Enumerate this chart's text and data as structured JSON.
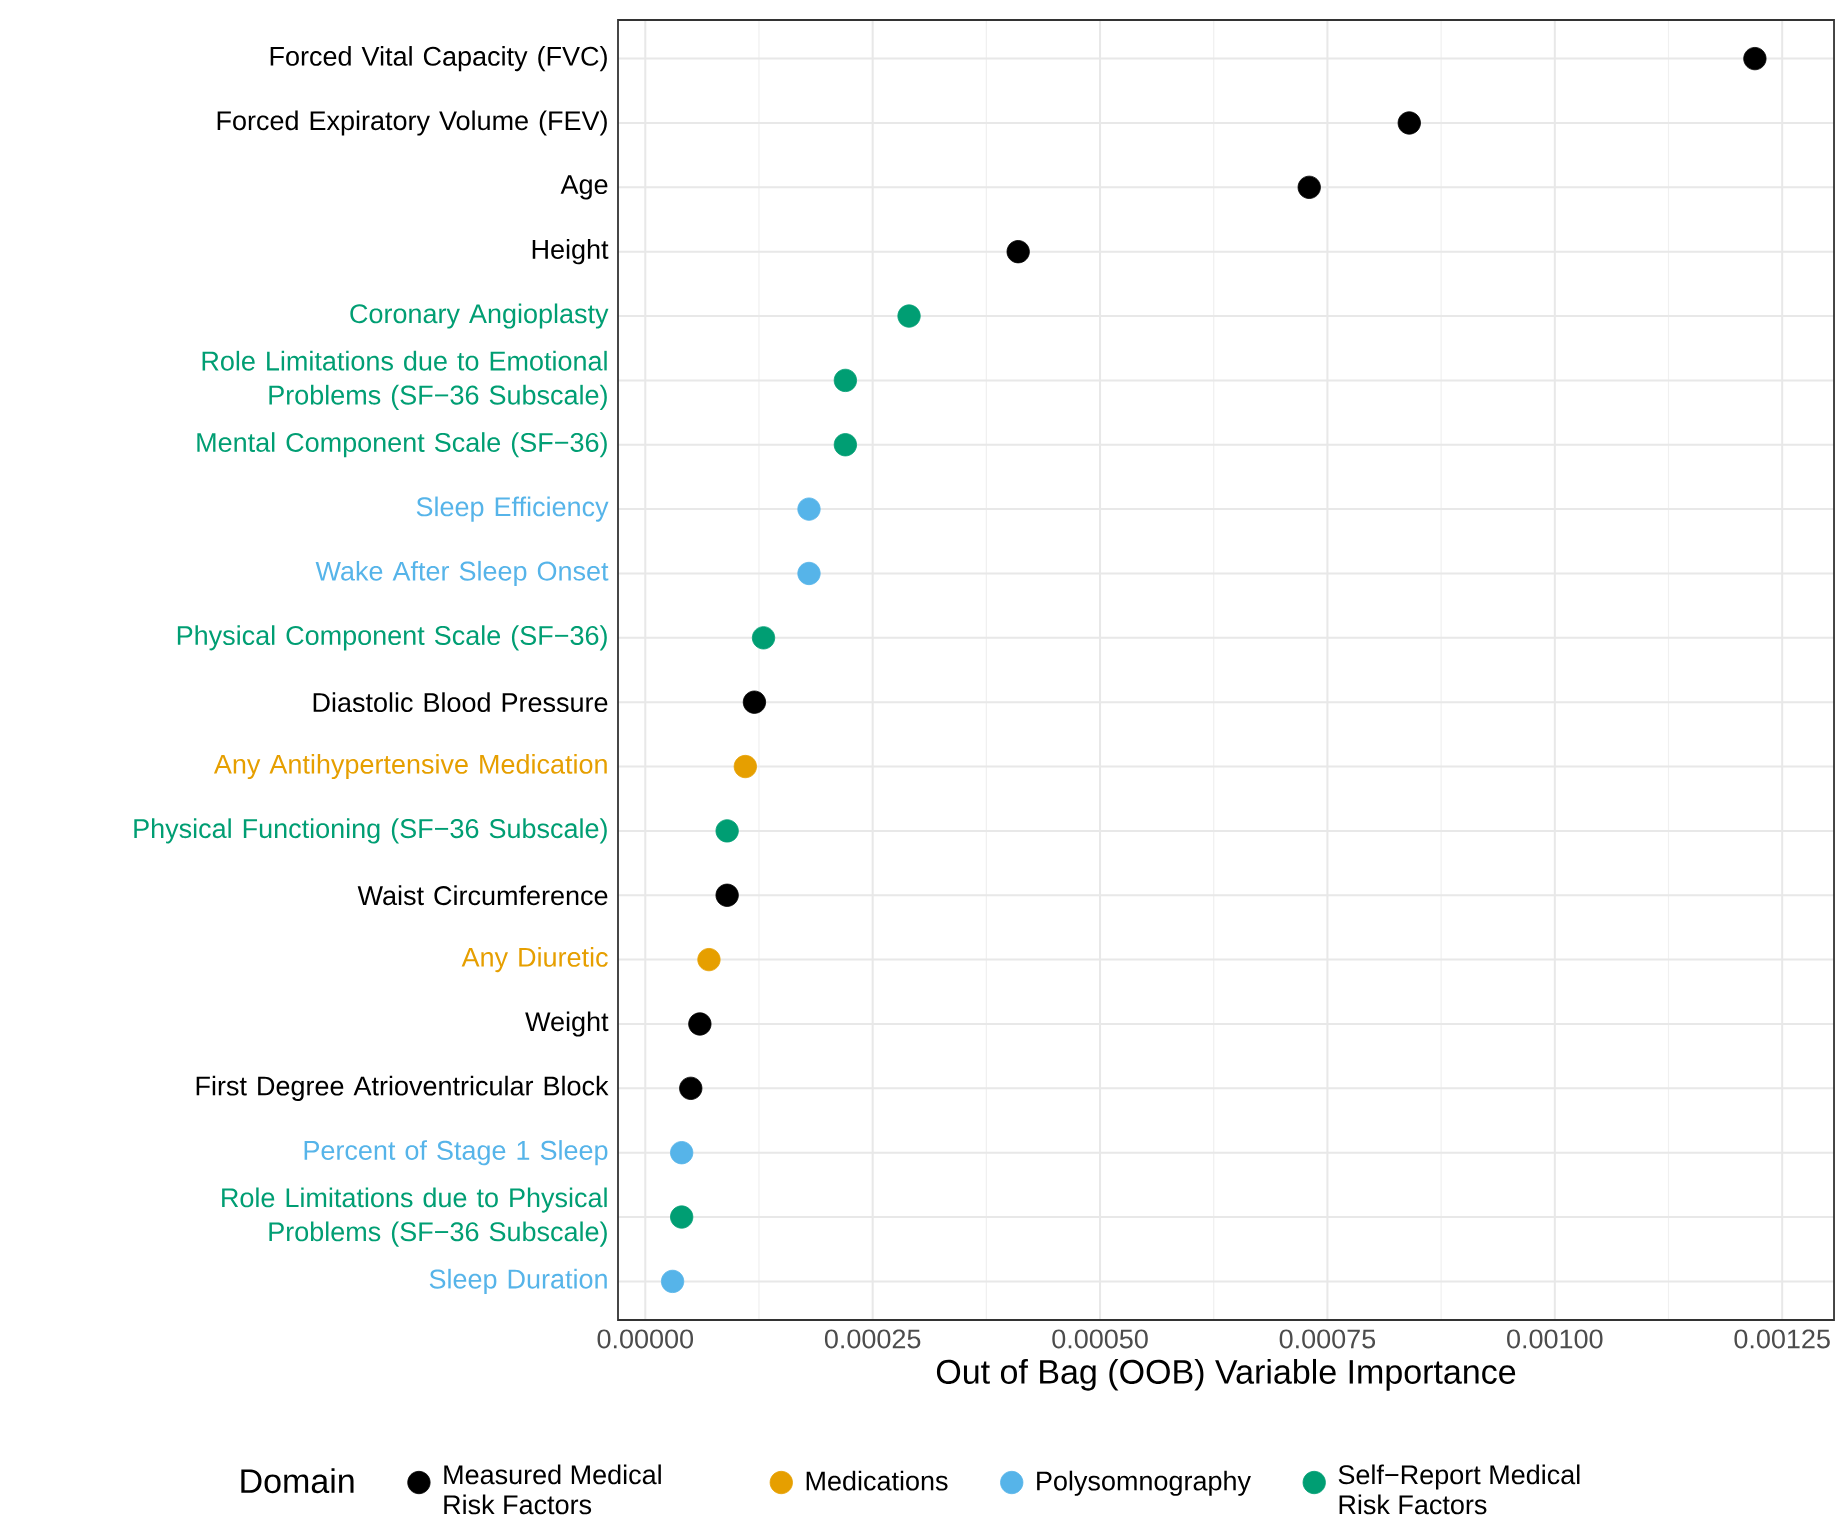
{
  "chart_data": {
    "type": "scatter",
    "orientation": "horizontal",
    "xlabel": "Out of Bag (OOB) Variable Importance",
    "legend_title": "Domain",
    "legend": "bottom",
    "grid": true,
    "categories": [
      "Forced Vital Capacity (FVC)",
      "Forced Expiratory Volume (FEV)",
      "Age",
      "Height",
      "Coronary Angioplasty",
      "Role Limitations due to Emotional Problems (SF−36 Subscale)",
      "Mental Component Scale (SF−36)",
      "Sleep Efficiency",
      "Wake After Sleep Onset",
      "Physical Component Scale (SF−36)",
      "Diastolic Blood Pressure",
      "Any Antihypertensive Medication",
      "Physical Functioning (SF−36 Subscale)",
      "Waist Circumference",
      "Any Diuretic",
      "Weight",
      "First Degree Atrioventricular Block",
      "Percent of Stage 1 Sleep",
      "Role Limitations due to Physical Problems (SF−36 Subscale)",
      "Sleep Duration"
    ],
    "xlim": [
      -3e-05,
      0.001307
    ],
    "xticks": [
      {
        "value": 0,
        "label": "0.00000"
      },
      {
        "value": 0.00025,
        "label": "0.00025"
      },
      {
        "value": 0.0005,
        "label": "0.00050"
      },
      {
        "value": 0.00075,
        "label": "0.00075"
      },
      {
        "value": 0.001,
        "label": "0.00100"
      },
      {
        "value": 0.00125,
        "label": "0.00125"
      }
    ],
    "series": [
      {
        "name": "Measured Medical Risk Factors",
        "color": "#000000",
        "values": [
          0.00122,
          0.00084,
          0.00073,
          0.00041,
          null,
          null,
          null,
          null,
          null,
          null,
          0.00012,
          null,
          null,
          9e-05,
          null,
          6e-05,
          5e-05,
          null,
          null,
          null
        ]
      },
      {
        "name": "Medications",
        "color": "#e69f00",
        "values": [
          null,
          null,
          null,
          null,
          null,
          null,
          null,
          null,
          null,
          null,
          null,
          0.00011,
          null,
          null,
          7e-05,
          null,
          null,
          null,
          null,
          null
        ]
      },
      {
        "name": "Polysomnography",
        "color": "#56b4e9",
        "values": [
          null,
          null,
          null,
          null,
          null,
          null,
          null,
          0.00018,
          0.00018,
          null,
          null,
          null,
          null,
          null,
          null,
          null,
          null,
          4e-05,
          null,
          3e-05
        ]
      },
      {
        "name": "Self−Report Medical Risk Factors",
        "color": "#009e73",
        "values": [
          null,
          null,
          null,
          null,
          0.00029,
          0.00022,
          0.00022,
          null,
          null,
          0.00013,
          null,
          null,
          9e-05,
          null,
          null,
          null,
          null,
          null,
          4e-05,
          null
        ]
      }
    ]
  }
}
